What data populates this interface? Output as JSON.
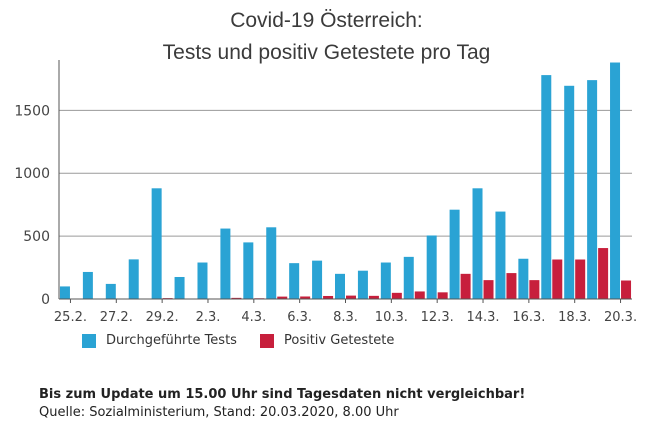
{
  "header": {
    "title_line1": "Covid-19 Österreich:",
    "title_line2": "Tests und positiv Getestete pro Tag"
  },
  "legend": {
    "tests": "Durchgeführte Tests",
    "positive": "Positiv Getestete"
  },
  "footer": {
    "note": "Bis zum Update um 15.00 Uhr sind Tagesdaten nicht vergleichbar!",
    "source": "Quelle: Sozialministerium, Stand: 20.03.2020, 8.00 Uhr"
  },
  "colors": {
    "tests": "#2aa3d4",
    "positive": "#c71f3c",
    "grid": "#9a9a9a"
  },
  "chart_data": {
    "type": "bar",
    "title": "Covid-19 Österreich: Tests und positiv Getestete pro Tag",
    "categories": [
      "25.2.",
      "26.2.",
      "27.2.",
      "28.2.",
      "29.2.",
      "1.3.",
      "2.3.",
      "3.3.",
      "4.3.",
      "5.3.",
      "6.3.",
      "7.3.",
      "8.3.",
      "9.3.",
      "10.3.",
      "11.3.",
      "12.3.",
      "13.3.",
      "14.3.",
      "15.3.",
      "16.3.",
      "17.3.",
      "18.3.",
      "19.3.",
      "20.3."
    ],
    "tick_labels": [
      "25.2.",
      "27.2.",
      "29.2.",
      "2.3.",
      "4.3.",
      "6.3.",
      "8.3.",
      "10.3.",
      "12.3.",
      "14.3.",
      "16.3.",
      "18.3.",
      "20.3."
    ],
    "series": [
      {
        "name": "Durchgeführte Tests",
        "values": [
          100,
          215,
          120,
          315,
          880,
          175,
          290,
          560,
          450,
          570,
          285,
          305,
          200,
          225,
          290,
          335,
          505,
          710,
          880,
          695,
          320,
          1780,
          1695,
          1740,
          1880
        ]
      },
      {
        "name": "Positiv Getestete",
        "values": [
          2,
          2,
          0,
          0,
          7,
          4,
          4,
          9,
          6,
          19,
          20,
          24,
          27,
          25,
          49,
          60,
          53,
          200,
          150,
          206,
          150,
          314,
          314,
          405,
          147
        ]
      }
    ],
    "ylim": [
      0,
      1900
    ],
    "yticks": [
      0,
      500,
      1000,
      1500
    ],
    "grid": true,
    "legend_position": "bottom"
  }
}
